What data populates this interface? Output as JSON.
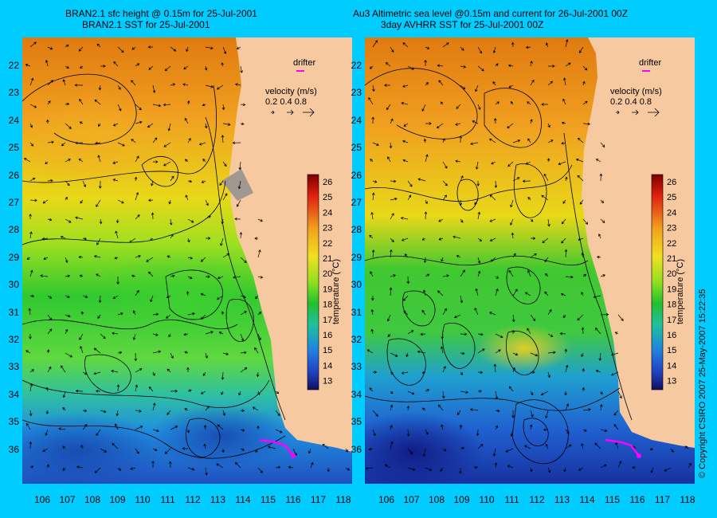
{
  "left": {
    "title_line1": "BRAN2.1 sfc height @ 0.15m for 25-Jul-2001",
    "title_line2": "BRAN2.1 SST for 25-Jul-2001"
  },
  "right": {
    "title_line1": "Au3 Altimetric sea level  @0.15m and current for 26-Jul-2001 00Z",
    "title_line2": "3day AVHRR SST for 25-Jul-2001 00Z"
  },
  "legend": {
    "drifter": "drifter",
    "velocity_label": "velocity (m/s)",
    "velocity_values": "0.2 0.4 0.8",
    "colorbar_title": "temperature (°C)",
    "colorbar_ticks": [
      "26",
      "25",
      "24",
      "23",
      "22",
      "21",
      "20",
      "19",
      "18",
      "17",
      "16",
      "15",
      "14",
      "13"
    ]
  },
  "axes": {
    "lat_ticks": [
      "22",
      "23",
      "24",
      "25",
      "26",
      "27",
      "28",
      "29",
      "30",
      "31",
      "32",
      "33",
      "34",
      "35",
      "36"
    ],
    "lon_ticks": [
      "106",
      "107",
      "108",
      "109",
      "110",
      "111",
      "112",
      "113",
      "114",
      "115",
      "116",
      "117",
      "118"
    ]
  },
  "copyright": "© Copyright CSIRO 2007   25-May-2007 15:22:35",
  "colors": {
    "background": "#00ccff",
    "land": "#f7c9a0",
    "drifter": "#ff00ff"
  }
}
